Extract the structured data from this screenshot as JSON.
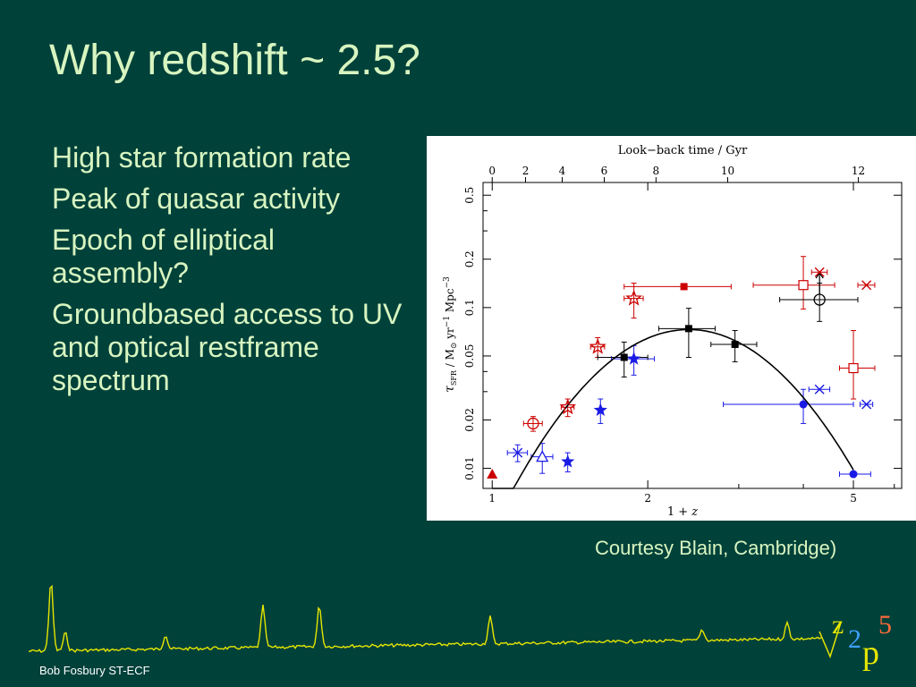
{
  "slide": {
    "title": "Why redshift ~ 2.5?",
    "bullets": [
      "High star formation rate",
      "Peak of quasar activity",
      "Epoch of elliptical assembly?",
      "Groundbased access to UV and optical restframe spectrum"
    ],
    "courtesy": "Courtesy Blain, Cambridge)",
    "footer": "Bob Fosbury ST-ECF",
    "logo": {
      "z": "z",
      "two": "2",
      "p": "p",
      "five": "5"
    }
  },
  "colors": {
    "background": "#00413a",
    "text": "#d8f5c0",
    "spectrum": "#e6e600",
    "red": "#cc0000",
    "blue": "#1a1ae6",
    "black": "#000000"
  },
  "chart_data": {
    "type": "scatter",
    "top_axis_label": "Look−back time / Gyr",
    "top_ticks": [
      "0",
      "2",
      "4",
      "6",
      "8",
      "10",
      "12"
    ],
    "top_ticks_gyr": [
      0,
      2,
      4,
      6,
      8,
      10,
      12
    ],
    "xlabel_main": "1 + ",
    "xlabel_var": "z",
    "x_ticks": [
      "1",
      "2",
      "5"
    ],
    "x_scale": "log",
    "xlim": [
      0.96,
      6.2
    ],
    "y_scale": "log",
    "ylim": [
      0.0075,
      0.6
    ],
    "y_ticks": [
      "0.01",
      "0.02",
      "0.05",
      "0.1",
      "0.2",
      "0.5"
    ],
    "ylabel": "τSFR / M⊙ yr−1 Mpc−3",
    "ylabel_parts": {
      "tau": "τ",
      "sub": "SFR",
      "mid": " / M",
      "sun": "⊙",
      "yr": " yr",
      "yrexp": "−1",
      "mpc": " Mpc",
      "mpcexp": "−3"
    },
    "curve": {
      "peak_x": 2.4,
      "peak_y": 0.073,
      "curvature": 8.6,
      "x_range": [
        1.0,
        5.0
      ]
    },
    "points": [
      {
        "x": 1.0,
        "y": 0.0092,
        "marker": "filled-triangle",
        "color": "red"
      },
      {
        "x": 1.2,
        "y": 0.019,
        "marker": "open-circle",
        "color": "red",
        "xerr": [
          0.05,
          0.05
        ],
        "yerr": [
          0.002,
          0.002
        ]
      },
      {
        "x": 1.4,
        "y": 0.024,
        "marker": "open-star",
        "color": "red",
        "xerr": [
          0.04,
          0.04
        ],
        "yerr": [
          0.003,
          0.003
        ]
      },
      {
        "x": 1.6,
        "y": 0.057,
        "marker": "open-star",
        "color": "red",
        "xerr": [
          0.05,
          0.05
        ],
        "yerr": [
          0.008,
          0.008
        ]
      },
      {
        "x": 1.88,
        "y": 0.114,
        "marker": "open-star",
        "color": "red",
        "xerr": [
          0.08,
          0.08
        ],
        "yerr": [
          0.028,
          0.028
        ]
      },
      {
        "x": 2.35,
        "y": 0.135,
        "marker": "filled-square",
        "color": "red",
        "xerr": [
          0.55,
          0.55
        ]
      },
      {
        "x": 4.0,
        "y": 0.138,
        "marker": "open-square",
        "color": "red",
        "xerr": [
          0.8,
          0.6
        ],
        "yerr": [
          0.04,
          0.07
        ]
      },
      {
        "x": 4.3,
        "y": 0.166,
        "marker": "cross",
        "color": "red",
        "xerr": [
          0.15,
          0.15
        ]
      },
      {
        "x": 5.3,
        "y": 0.138,
        "marker": "cross",
        "color": "red",
        "xerr": [
          0.2,
          0.2
        ]
      },
      {
        "x": 5.0,
        "y": 0.042,
        "marker": "open-square",
        "color": "red",
        "xerr": [
          0.3,
          0.5
        ],
        "yerr": [
          0.015,
          0.03
        ]
      },
      {
        "x": 1.12,
        "y": 0.0125,
        "marker": "cross",
        "color": "blue",
        "xerr": [
          0.05,
          0.05
        ],
        "yerr": [
          0.0015,
          0.0015
        ]
      },
      {
        "x": 1.25,
        "y": 0.0118,
        "marker": "open-triangle",
        "color": "blue",
        "xerr": [
          0.06,
          0.06
        ],
        "yerr": [
          0.0025,
          0.0025
        ]
      },
      {
        "x": 1.4,
        "y": 0.011,
        "marker": "filled-star",
        "color": "blue",
        "yerr": [
          0.0015,
          0.0015
        ]
      },
      {
        "x": 1.62,
        "y": 0.023,
        "marker": "filled-star",
        "color": "blue",
        "yerr": [
          0.004,
          0.004
        ]
      },
      {
        "x": 1.88,
        "y": 0.048,
        "marker": "filled-star",
        "color": "blue",
        "xerr": [
          0.18,
          0.18
        ],
        "yerr": [
          0.01,
          0.01
        ]
      },
      {
        "x": 4.0,
        "y": 0.025,
        "marker": "filled-circle",
        "color": "blue",
        "xerr": [
          1.2,
          1.0
        ],
        "yerr": [
          0.006,
          0.006
        ]
      },
      {
        "x": 4.3,
        "y": 0.031,
        "marker": "cross",
        "color": "blue",
        "xerr": [
          0.2,
          0.2
        ]
      },
      {
        "x": 5.3,
        "y": 0.025,
        "marker": "cross",
        "color": "blue",
        "xerr": [
          0.15,
          0.15
        ]
      },
      {
        "x": 5.0,
        "y": 0.0092,
        "marker": "filled-circle",
        "color": "blue",
        "xerr": [
          0.3,
          0.4
        ]
      },
      {
        "x": 1.8,
        "y": 0.049,
        "marker": "filled-square",
        "color": "black",
        "xerr": [
          0.2,
          0.2
        ],
        "yerr": [
          0.012,
          0.012
        ]
      },
      {
        "x": 2.4,
        "y": 0.074,
        "marker": "filled-square",
        "color": "black",
        "xerr": [
          0.3,
          0.3
        ],
        "yerr": [
          0.025,
          0.025
        ]
      },
      {
        "x": 2.95,
        "y": 0.059,
        "marker": "filled-square",
        "color": "black",
        "xerr": [
          0.3,
          0.3
        ],
        "yerr": [
          0.013,
          0.013
        ]
      },
      {
        "x": 4.3,
        "y": 0.112,
        "marker": "open-circle",
        "color": "black",
        "xerr": [
          0.7,
          0.8
        ],
        "yerr": [
          0.03,
          0.03
        ],
        "arrow_up": true
      }
    ]
  }
}
